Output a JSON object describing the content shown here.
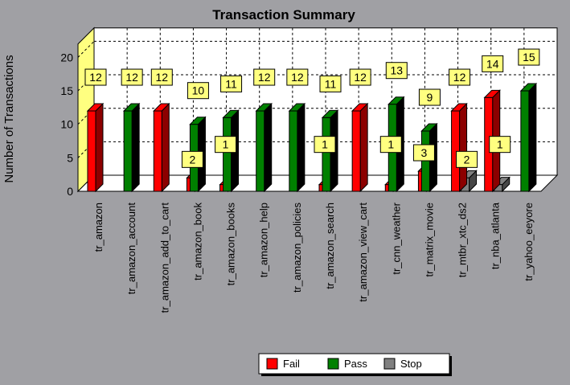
{
  "chart_data": {
    "type": "bar",
    "title": "Transaction Summary",
    "ylabel": "Number of Transactions",
    "xlabel": "",
    "ylim": [
      0,
      22
    ],
    "yticks": [
      0,
      5,
      10,
      15,
      20
    ],
    "grid": true,
    "legend_position": "bottom",
    "categories": [
      "tr_amazon",
      "tr_amazon_account",
      "tr_amazon_add_to_cart",
      "tr_amazon_book",
      "tr_amazon_books",
      "tr_amazon_help",
      "tr_amazon_policies",
      "tr_amazon_search",
      "tr_amazon_view_cart",
      "tr_cnn_weather",
      "tr_matrix_movie",
      "tr_mtbr_xtc_ds2",
      "tr_nba_atlanta",
      "tr_yahoo_eeyore"
    ],
    "series": [
      {
        "name": "Fail",
        "color": "#ff0000",
        "values": [
          12,
          0,
          12,
          2,
          1,
          0,
          0,
          1,
          12,
          1,
          3,
          12,
          14,
          0
        ]
      },
      {
        "name": "Pass",
        "color": "#008000",
        "values": [
          0,
          12,
          0,
          10,
          11,
          12,
          12,
          11,
          0,
          13,
          9,
          0,
          0,
          15
        ]
      },
      {
        "name": "Stop",
        "color": "#808080",
        "values": [
          0,
          0,
          0,
          0,
          0,
          0,
          0,
          0,
          0,
          0,
          0,
          2,
          1,
          0
        ]
      }
    ]
  }
}
